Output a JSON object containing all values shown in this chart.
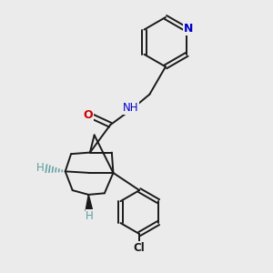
{
  "bg_color": "#ebebeb",
  "bond_color": "#1a1a1a",
  "N_color": "#0000cc",
  "O_color": "#cc0000",
  "teal_color": "#5f9ea0",
  "figsize": [
    3.0,
    3.0
  ],
  "dpi": 100,
  "xlim": [
    0.05,
    0.95
  ],
  "ylim": [
    0.05,
    0.98
  ]
}
